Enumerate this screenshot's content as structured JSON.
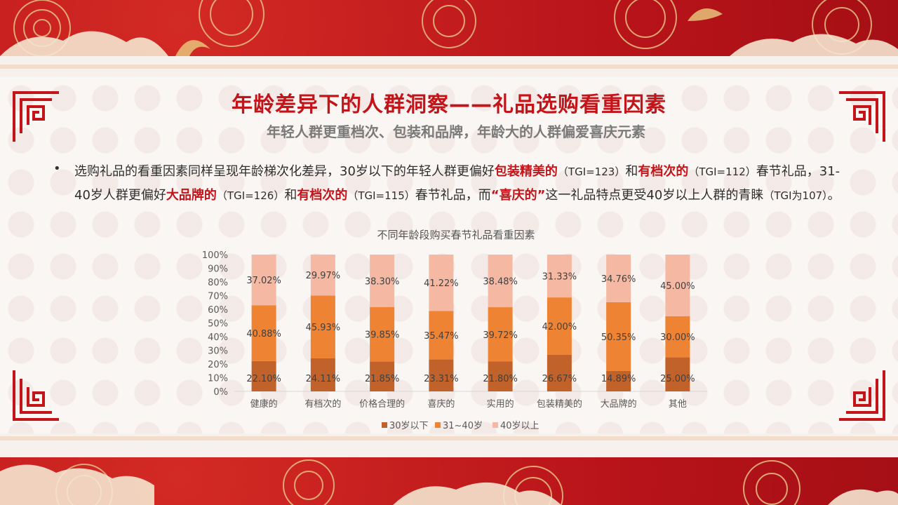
{
  "header": {
    "title": "年龄差异下的人群洞察——礼品选购看重因素",
    "subtitle": "年轻人群更重档次、包装和品牌，年龄大的人群偏爱喜庆元素"
  },
  "summary": {
    "bullet": "•",
    "segments": [
      {
        "text": "选购礼品的看重因素同样呈现年龄梯次化差异，30岁以下的年轻人群更偏好",
        "style": ""
      },
      {
        "text": "包装精美的",
        "style": "hl"
      },
      {
        "text": "（TGI=123）",
        "style": "tgi"
      },
      {
        "text": "和",
        "style": ""
      },
      {
        "text": "有档次的",
        "style": "hl"
      },
      {
        "text": "（TGI=112）",
        "style": "tgi"
      },
      {
        "text": "春节礼品，31-40岁人群更偏好",
        "style": ""
      },
      {
        "text": "大品牌的",
        "style": "hl"
      },
      {
        "text": "（TGI=126）",
        "style": "tgi"
      },
      {
        "text": "和",
        "style": ""
      },
      {
        "text": "有档次的",
        "style": "hl"
      },
      {
        "text": "（TGI=115）",
        "style": "tgi"
      },
      {
        "text": "春节礼品，而",
        "style": ""
      },
      {
        "text": "“喜庆的”",
        "style": "hl"
      },
      {
        "text": "这一礼品特点更受40岁以上人群的青睐",
        "style": ""
      },
      {
        "text": "（TGI为107）",
        "style": "tgi"
      },
      {
        "text": "。",
        "style": ""
      }
    ]
  },
  "colors": {
    "red": "#c3141a",
    "series": [
      "#c0622a",
      "#ee8333",
      "#f5b9a3"
    ]
  },
  "chart_data": {
    "type": "bar",
    "stacked": true,
    "title": "不同年龄段购买春节礼品看重因素",
    "categories": [
      "健康的",
      "有档次的",
      "价格合理的",
      "喜庆的",
      "实用的",
      "包装精美的",
      "大品牌的",
      "其他"
    ],
    "series": [
      {
        "name": "30岁以下",
        "values": [
          22.1,
          24.11,
          21.85,
          23.31,
          21.8,
          26.67,
          14.89,
          25.0
        ]
      },
      {
        "name": "31~40岁",
        "values": [
          40.88,
          45.93,
          39.85,
          35.47,
          39.72,
          42.0,
          50.35,
          30.0
        ]
      },
      {
        "name": "40岁以上",
        "values": [
          37.02,
          29.97,
          38.3,
          41.22,
          38.48,
          31.33,
          34.76,
          45.0
        ]
      }
    ],
    "y_ticks": [
      "0%",
      "10%",
      "20%",
      "30%",
      "40%",
      "50%",
      "60%",
      "70%",
      "80%",
      "90%",
      "100%"
    ],
    "ylim": [
      0,
      100
    ],
    "legend": "bottom",
    "grid": false
  }
}
